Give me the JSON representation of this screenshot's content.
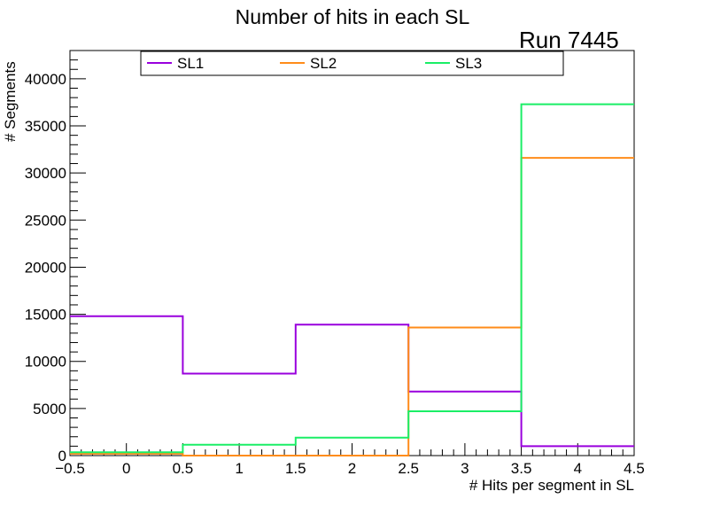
{
  "chart_data": {
    "type": "step",
    "title": "Number of hits in each SL",
    "annotation": "Run 7445",
    "xlabel": "# Hits per segment in SL",
    "ylabel": "# Segments",
    "xlim": [
      -0.5,
      4.5
    ],
    "ylim": [
      0,
      43000
    ],
    "bin_edges": [
      -0.5,
      0.5,
      1.5,
      2.5,
      3.5,
      4.5
    ],
    "x_ticks": [
      -0.5,
      0,
      0.5,
      1,
      1.5,
      2,
      2.5,
      3,
      3.5,
      4,
      4.5
    ],
    "x_tick_labels": [
      "−0.5",
      "0",
      "0.5",
      "1",
      "1.5",
      "2",
      "2.5",
      "3",
      "3.5",
      "4",
      "4.5"
    ],
    "y_ticks": [
      0,
      5000,
      10000,
      15000,
      20000,
      25000,
      30000,
      35000,
      40000
    ],
    "y_tick_labels": [
      "0",
      "5000",
      "10000",
      "15000",
      "20000",
      "25000",
      "30000",
      "35000",
      "40000"
    ],
    "legend_position": "top",
    "series": [
      {
        "name": "SL1",
        "color": "#9900dd",
        "values": [
          14800,
          8700,
          13900,
          6800,
          1000
        ]
      },
      {
        "name": "SL2",
        "color": "#ff8c1a",
        "values": [
          200,
          0,
          0,
          13600,
          31600
        ]
      },
      {
        "name": "SL3",
        "color": "#1aee66",
        "values": [
          350,
          1150,
          1900,
          4700,
          37300
        ]
      }
    ]
  }
}
